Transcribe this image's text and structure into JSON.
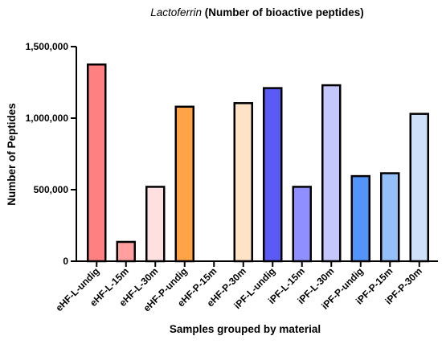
{
  "chart_data": {
    "type": "bar",
    "title": {
      "italic": "Lactoferrin",
      "rest": " (Number of bioactive peptides)"
    },
    "xlabel": "Samples grouped by material",
    "ylabel": "Number of Peptides",
    "ylim": [
      0,
      1500000
    ],
    "yticks": [
      0,
      500000,
      1000000,
      1500000
    ],
    "ytick_labels": [
      "0",
      "500,000",
      "1,000,000",
      "1,500,000"
    ],
    "categories": [
      "eHF-L-undig",
      "eHF-L-15m",
      "eHF-L-30m",
      "eHF-P-undig",
      "eHF-P-15m",
      "eHF-P-30m",
      "iPF-L-undig",
      "iPF-L-15m",
      "iPF-L-30m",
      "iPF-P-undig",
      "iPF-P-15m",
      "iPF-P-30m"
    ],
    "values": [
      1375000,
      135000,
      520000,
      1080000,
      0,
      1105000,
      1210000,
      520000,
      1230000,
      595000,
      615000,
      1030000
    ],
    "colors": [
      "#ff8080",
      "#ff9f9f",
      "#ffe0e0",
      "#ffa347",
      "#ffd9b0",
      "#ffe3c6",
      "#5a5af5",
      "#8f8fff",
      "#c6c6ff",
      "#5294f7",
      "#94bff8",
      "#cfe0fb"
    ],
    "grid": false,
    "legend": "none"
  }
}
